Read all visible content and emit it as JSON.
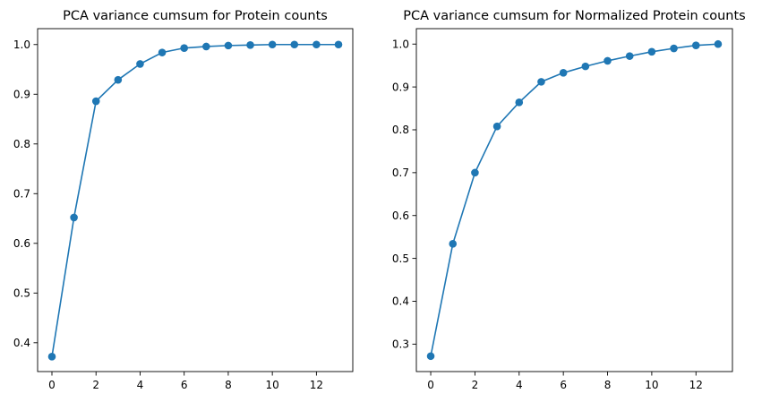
{
  "colors": {
    "series": "#1f77b4",
    "axes": "#000000",
    "background": "#ffffff"
  },
  "chart_data": [
    {
      "type": "line",
      "title": "PCA variance cumsum for Protein counts",
      "xlabel": "",
      "ylabel": "",
      "markers": "circle",
      "grid": false,
      "xlim": [
        -0.65,
        13.65
      ],
      "ylim": [
        0.342,
        1.032
      ],
      "xticks": [
        0,
        2,
        4,
        6,
        8,
        10,
        12
      ],
      "xtick_labels": [
        "0",
        "2",
        "4",
        "6",
        "8",
        "10",
        "12"
      ],
      "yticks": [
        0.4,
        0.5,
        0.6,
        0.7,
        0.8,
        0.9,
        1.0
      ],
      "ytick_labels": [
        "0.4",
        "0.5",
        "0.6",
        "0.7",
        "0.8",
        "0.9",
        "1.0"
      ],
      "x": [
        0,
        1,
        2,
        3,
        4,
        5,
        6,
        7,
        8,
        9,
        10,
        11,
        12,
        13
      ],
      "y": [
        0.372,
        0.652,
        0.886,
        0.929,
        0.961,
        0.984,
        0.993,
        0.996,
        0.998,
        0.999,
        1.0,
        1.0,
        1.0,
        1.0
      ]
    },
    {
      "type": "line",
      "title": "PCA variance cumsum for Normalized Protein counts",
      "xlabel": "",
      "ylabel": "",
      "markers": "circle",
      "grid": false,
      "xlim": [
        -0.65,
        13.65
      ],
      "ylim": [
        0.236,
        1.036
      ],
      "xticks": [
        0,
        2,
        4,
        6,
        8,
        10,
        12
      ],
      "xtick_labels": [
        "0",
        "2",
        "4",
        "6",
        "8",
        "10",
        "12"
      ],
      "yticks": [
        0.3,
        0.4,
        0.5,
        0.6,
        0.7,
        0.8,
        0.9,
        1.0
      ],
      "ytick_labels": [
        "0.3",
        "0.4",
        "0.5",
        "0.6",
        "0.7",
        "0.8",
        "0.9",
        "1.0"
      ],
      "x": [
        0,
        1,
        2,
        3,
        4,
        5,
        6,
        7,
        8,
        9,
        10,
        11,
        12,
        13
      ],
      "y": [
        0.272,
        0.534,
        0.7,
        0.808,
        0.864,
        0.912,
        0.933,
        0.948,
        0.961,
        0.972,
        0.982,
        0.99,
        0.997,
        1.0
      ]
    }
  ]
}
